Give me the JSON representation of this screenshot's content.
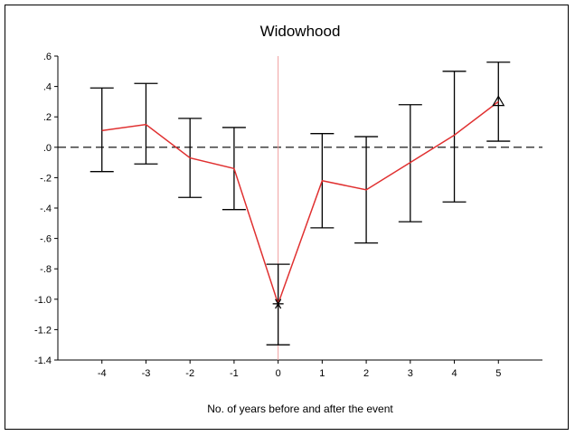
{
  "chart_data": {
    "type": "line",
    "title": "Widowhood",
    "xlabel": "No. of years before and after the event",
    "ylabel": "",
    "x": [
      -4,
      -3,
      -2,
      -1,
      0,
      1,
      2,
      3,
      4,
      5
    ],
    "x_tick_labels": [
      "-4",
      "-3",
      "-2",
      "-1",
      "0",
      "1",
      "2",
      "3",
      "4",
      "5"
    ],
    "xlim": [
      -5,
      6
    ],
    "ylim": [
      -1.4,
      0.6
    ],
    "y_ticks": [
      0.6,
      0.4,
      0.2,
      0.0,
      -0.2,
      -0.4,
      -0.6,
      -0.8,
      -1.0,
      -1.2,
      -1.4
    ],
    "y_tick_labels": [
      ".6",
      ".4",
      ".2",
      ".0",
      "-.2",
      "-.4",
      "-.6",
      "-.8",
      "-1.0",
      "-1.2",
      "-1.4"
    ],
    "series": [
      {
        "values": [
          0.11,
          0.15,
          -0.07,
          -0.14,
          -1.03,
          -0.22,
          -0.28,
          -0.1,
          0.08,
          0.3
        ],
        "upper": [
          0.39,
          0.42,
          0.19,
          0.13,
          -0.77,
          0.09,
          0.07,
          0.28,
          0.5,
          0.56
        ],
        "lower": [
          -0.16,
          -0.11,
          -0.33,
          -0.41,
          -1.3,
          -0.53,
          -0.63,
          -0.49,
          -0.36,
          0.04
        ],
        "color": "#e03030",
        "error_bar_color": "#000000"
      }
    ],
    "markers": [
      {
        "x": 0,
        "y": -1.03,
        "symbol": "asterisk"
      },
      {
        "x": 5,
        "y": 0.3,
        "symbol": "triangle"
      }
    ],
    "reference_lines": [
      {
        "orientation": "horizontal",
        "value": 0.0,
        "style": "dashed",
        "color": "#000000"
      },
      {
        "orientation": "vertical",
        "value": 0,
        "style": "solid",
        "color": "#f0a0a0"
      }
    ],
    "grid": false,
    "legend": "none"
  }
}
